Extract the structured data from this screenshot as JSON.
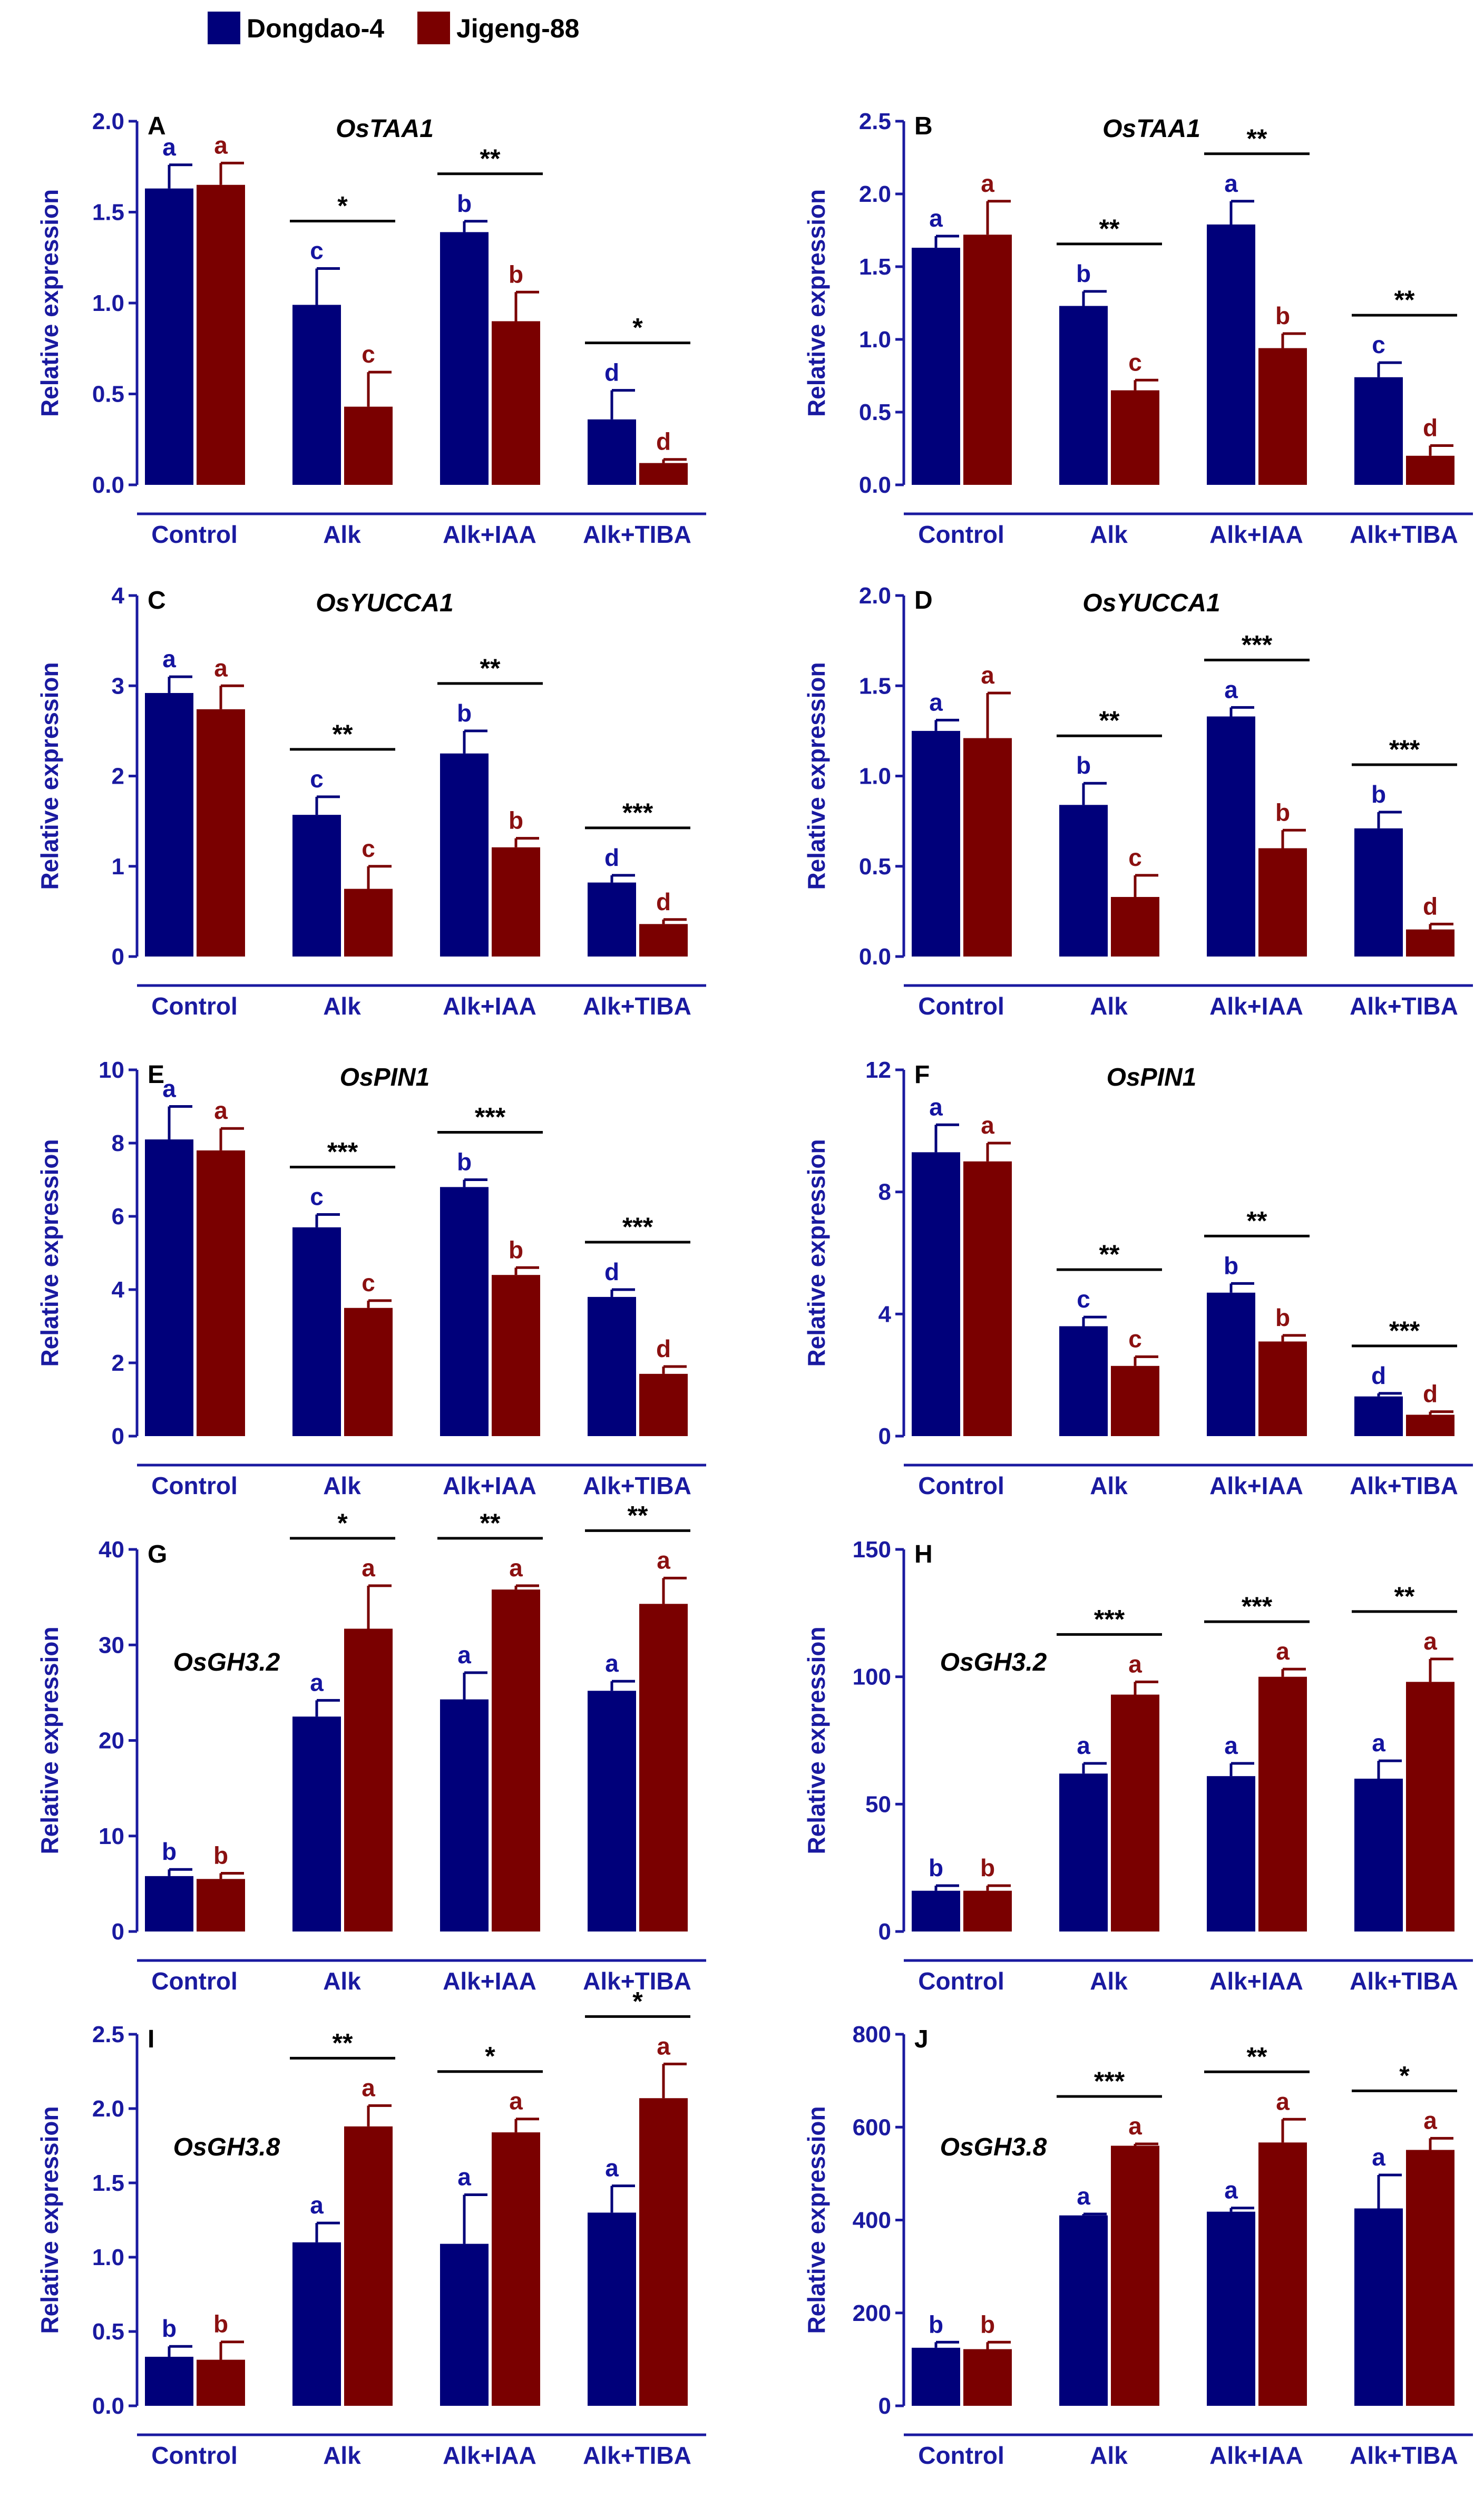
{
  "legend": {
    "items": [
      {
        "label": "Dongdao-4",
        "color": "#00007a"
      },
      {
        "label": "Jigeng-88",
        "color": "#7a0000"
      }
    ]
  },
  "colors": {
    "dongdao": "#00007a",
    "jigeng": "#7a0000",
    "axis": "#1a1aa0",
    "letter_dongdao": "#1414a0",
    "letter_jigeng": "#8b1010"
  },
  "chart_data": [
    {
      "id": "A",
      "type": "bar",
      "panel_letter": "A",
      "title": "OsTAA1",
      "title_pos": "top",
      "ylabel": "Relative expression",
      "ylim": [
        0,
        2.0
      ],
      "yticks": [
        "0.0",
        "0.5",
        "1.0",
        "1.5",
        "2.0"
      ],
      "categories": [
        "Control",
        "Alk",
        "Alk+IAA",
        "Alk+TIBA"
      ],
      "series": [
        {
          "name": "Dongdao-4",
          "values": [
            1.63,
            0.99,
            1.39,
            0.36
          ],
          "errors": [
            0.13,
            0.2,
            0.06,
            0.16
          ],
          "letters": [
            "a",
            "c",
            "b",
            "d"
          ]
        },
        {
          "name": "Jigeng-88",
          "values": [
            1.65,
            0.43,
            0.9,
            0.12
          ],
          "errors": [
            0.12,
            0.19,
            0.16,
            0.02
          ],
          "letters": [
            "a",
            "c",
            "b",
            "d"
          ]
        }
      ],
      "significance": [
        "",
        "*",
        "**",
        "*"
      ]
    },
    {
      "id": "B",
      "type": "bar",
      "panel_letter": "B",
      "title": "OsTAA1",
      "title_pos": "top",
      "ylabel": "Relative expression",
      "ylim": [
        0,
        2.5
      ],
      "yticks": [
        "0.0",
        "0.5",
        "1.0",
        "1.5",
        "2.0",
        "2.5"
      ],
      "categories": [
        "Control",
        "Alk",
        "Alk+IAA",
        "Alk+TIBA"
      ],
      "series": [
        {
          "name": "Dongdao-4",
          "values": [
            1.63,
            1.23,
            1.79,
            0.74
          ],
          "errors": [
            0.08,
            0.1,
            0.16,
            0.1
          ],
          "letters": [
            "a",
            "b",
            "a",
            "c"
          ]
        },
        {
          "name": "Jigeng-88",
          "values": [
            1.72,
            0.65,
            0.94,
            0.2
          ],
          "errors": [
            0.23,
            0.07,
            0.1,
            0.07
          ],
          "letters": [
            "a",
            "c",
            "b",
            "d"
          ]
        }
      ],
      "significance": [
        "",
        "**",
        "**",
        "**"
      ]
    },
    {
      "id": "C",
      "type": "bar",
      "panel_letter": "C",
      "title": "OsYUCCA1",
      "title_pos": "top",
      "ylabel": "Relative expression",
      "ylim": [
        0,
        4
      ],
      "yticks": [
        "0",
        "1",
        "2",
        "3",
        "4"
      ],
      "categories": [
        "Control",
        "Alk",
        "Alk+IAA",
        "Alk+TIBA"
      ],
      "series": [
        {
          "name": "Dongdao-4",
          "values": [
            2.92,
            1.57,
            2.25,
            0.82
          ],
          "errors": [
            0.18,
            0.2,
            0.25,
            0.08
          ],
          "letters": [
            "a",
            "c",
            "b",
            "d"
          ]
        },
        {
          "name": "Jigeng-88",
          "values": [
            2.74,
            0.75,
            1.21,
            0.36
          ],
          "errors": [
            0.26,
            0.25,
            0.1,
            0.05
          ],
          "letters": [
            "a",
            "c",
            "b",
            "d"
          ]
        }
      ],
      "significance": [
        "",
        "**",
        "**",
        "***"
      ]
    },
    {
      "id": "D",
      "type": "bar",
      "panel_letter": "D",
      "title": "OsYUCCA1",
      "title_pos": "top",
      "ylabel": "Relative expression",
      "ylim": [
        0,
        2.0
      ],
      "yticks": [
        "0.0",
        "0.5",
        "1.0",
        "1.5",
        "2.0"
      ],
      "categories": [
        "Control",
        "Alk",
        "Alk+IAA",
        "Alk+TIBA"
      ],
      "series": [
        {
          "name": "Dongdao-4",
          "values": [
            1.25,
            0.84,
            1.33,
            0.71
          ],
          "errors": [
            0.06,
            0.12,
            0.05,
            0.09
          ],
          "letters": [
            "a",
            "b",
            "a",
            "b"
          ]
        },
        {
          "name": "Jigeng-88",
          "values": [
            1.21,
            0.33,
            0.6,
            0.15
          ],
          "errors": [
            0.25,
            0.12,
            0.1,
            0.03
          ],
          "letters": [
            "a",
            "c",
            "b",
            "d"
          ]
        }
      ],
      "significance": [
        "",
        "**",
        "***",
        "***"
      ]
    },
    {
      "id": "E",
      "type": "bar",
      "panel_letter": "E",
      "title": "OsPIN1",
      "title_pos": "top",
      "ylabel": "Relative expression",
      "ylim": [
        0,
        10
      ],
      "yticks": [
        "0",
        "2",
        "4",
        "6",
        "8",
        "10"
      ],
      "categories": [
        "Control",
        "Alk",
        "Alk+IAA",
        "Alk+TIBA"
      ],
      "series": [
        {
          "name": "Dongdao-4",
          "values": [
            8.1,
            5.7,
            6.8,
            3.8
          ],
          "errors": [
            0.9,
            0.35,
            0.2,
            0.2
          ],
          "letters": [
            "a",
            "c",
            "b",
            "d"
          ]
        },
        {
          "name": "Jigeng-88",
          "values": [
            7.8,
            3.5,
            4.4,
            1.7
          ],
          "errors": [
            0.6,
            0.2,
            0.2,
            0.2
          ],
          "letters": [
            "a",
            "c",
            "b",
            "d"
          ]
        }
      ],
      "significance": [
        "",
        "***",
        "***",
        "***"
      ]
    },
    {
      "id": "F",
      "type": "bar",
      "panel_letter": "F",
      "title": "OsPIN1",
      "title_pos": "top",
      "ylabel": "Relative expression",
      "ylim": [
        0,
        12
      ],
      "yticks": [
        "0",
        "4",
        "8",
        "12"
      ],
      "categories": [
        "Control",
        "Alk",
        "Alk+IAA",
        "Alk+TIBA"
      ],
      "series": [
        {
          "name": "Dongdao-4",
          "values": [
            9.3,
            3.6,
            4.7,
            1.3
          ],
          "errors": [
            0.9,
            0.3,
            0.3,
            0.1
          ],
          "letters": [
            "a",
            "c",
            "b",
            "d"
          ]
        },
        {
          "name": "Jigeng-88",
          "values": [
            9.0,
            2.3,
            3.1,
            0.7
          ],
          "errors": [
            0.6,
            0.3,
            0.2,
            0.1
          ],
          "letters": [
            "a",
            "c",
            "b",
            "d"
          ]
        }
      ],
      "significance": [
        "",
        "**",
        "**",
        "***"
      ]
    },
    {
      "id": "G",
      "type": "bar",
      "panel_letter": "G",
      "title": "OsGH3.2",
      "title_pos": "inside",
      "ylabel": "Relative expression",
      "ylim": [
        0,
        40
      ],
      "yticks": [
        "0",
        "10",
        "20",
        "30",
        "40"
      ],
      "categories": [
        "Control",
        "Alk",
        "Alk+IAA",
        "Alk+TIBA"
      ],
      "series": [
        {
          "name": "Dongdao-4",
          "values": [
            5.8,
            22.5,
            24.3,
            25.2
          ],
          "errors": [
            0.7,
            1.7,
            2.8,
            1.0
          ],
          "letters": [
            "b",
            "a",
            "a",
            "a"
          ]
        },
        {
          "name": "Jigeng-88",
          "values": [
            5.5,
            31.7,
            35.8,
            34.3
          ],
          "errors": [
            0.6,
            4.5,
            0.4,
            2.7
          ],
          "letters": [
            "b",
            "a",
            "a",
            "a"
          ]
        }
      ],
      "significance": [
        "",
        "*",
        "**",
        "**"
      ]
    },
    {
      "id": "H",
      "type": "bar",
      "panel_letter": "H",
      "title": "OsGH3.2",
      "title_pos": "inside",
      "ylabel": "Relative expression",
      "ylim": [
        0,
        150
      ],
      "yticks": [
        "0",
        "50",
        "100",
        "150"
      ],
      "categories": [
        "Control",
        "Alk",
        "Alk+IAA",
        "Alk+TIBA"
      ],
      "series": [
        {
          "name": "Dongdao-4",
          "values": [
            16,
            62,
            61,
            60
          ],
          "errors": [
            2,
            4,
            5,
            7
          ],
          "letters": [
            "b",
            "a",
            "a",
            "a"
          ]
        },
        {
          "name": "Jigeng-88",
          "values": [
            16,
            93,
            100,
            98
          ],
          "errors": [
            2,
            5,
            3,
            9
          ],
          "letters": [
            "b",
            "a",
            "a",
            "a"
          ]
        }
      ],
      "significance": [
        "",
        "***",
        "***",
        "**"
      ]
    },
    {
      "id": "I",
      "type": "bar",
      "panel_letter": "I",
      "title": "OsGH3.8",
      "title_pos": "inside",
      "ylabel": "Relative expression",
      "ylim": [
        0,
        2.5
      ],
      "yticks": [
        "0.0",
        "0.5",
        "1.0",
        "1.5",
        "2.0",
        "2.5"
      ],
      "categories": [
        "Control",
        "Alk",
        "Alk+IAA",
        "Alk+TIBA"
      ],
      "series": [
        {
          "name": "Dongdao-4",
          "values": [
            0.33,
            1.1,
            1.09,
            1.3
          ],
          "errors": [
            0.07,
            0.13,
            0.33,
            0.18
          ],
          "letters": [
            "b",
            "a",
            "a",
            "a"
          ]
        },
        {
          "name": "Jigeng-88",
          "values": [
            0.31,
            1.88,
            1.84,
            2.07
          ],
          "errors": [
            0.12,
            0.14,
            0.09,
            0.23
          ],
          "letters": [
            "b",
            "a",
            "a",
            "a"
          ]
        }
      ],
      "significance": [
        "",
        "**",
        "*",
        "*"
      ]
    },
    {
      "id": "J",
      "type": "bar",
      "panel_letter": "J",
      "title": "OsGH3.8",
      "title_pos": "inside",
      "ylabel": "Relative expression",
      "ylim": [
        0,
        800
      ],
      "yticks": [
        "0",
        "200",
        "400",
        "600",
        "800"
      ],
      "categories": [
        "Control",
        "Alk",
        "Alk+IAA",
        "Alk+TIBA"
      ],
      "series": [
        {
          "name": "Dongdao-4",
          "values": [
            125,
            410,
            418,
            425
          ],
          "errors": [
            12,
            3,
            8,
            72
          ],
          "letters": [
            "b",
            "a",
            "a",
            "a"
          ]
        },
        {
          "name": "Jigeng-88",
          "values": [
            122,
            560,
            567,
            551
          ],
          "errors": [
            15,
            4,
            50,
            25
          ],
          "letters": [
            "b",
            "a",
            "a",
            "a"
          ]
        }
      ],
      "significance": [
        "",
        "***",
        "**",
        "*"
      ]
    }
  ]
}
